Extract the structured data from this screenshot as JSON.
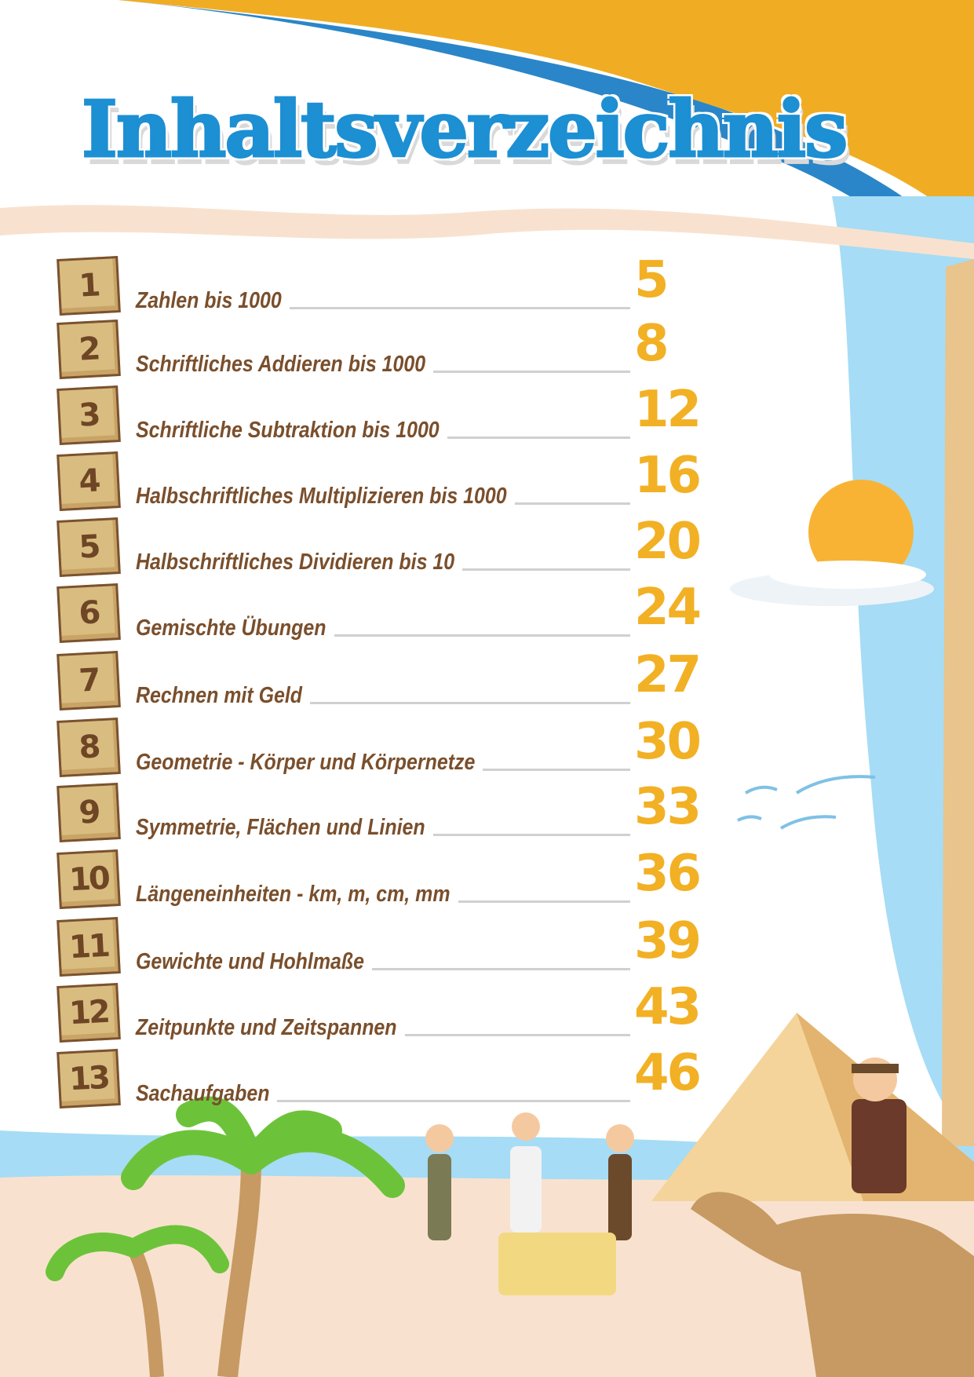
{
  "title": "Inhaltsverzeichnis",
  "colors": {
    "title": "#1d8fd3",
    "label": "#7a4f2c",
    "page_number": "#f2b024",
    "badge": "#d9bd80",
    "sky": "#a6dcf5",
    "sand": "#f8e2cf",
    "orange": "#f0ad24"
  },
  "toc": [
    {
      "number": "1",
      "label": "Zahlen bis 1000",
      "page": "5"
    },
    {
      "number": "2",
      "label": "Schriftliches Addieren bis 1000",
      "page": "8"
    },
    {
      "number": "3",
      "label": "Schriftliche Subtraktion bis 1000",
      "page": "12"
    },
    {
      "number": "4",
      "label": "Halbschriftliches Multiplizieren bis 1000",
      "page": "16"
    },
    {
      "number": "5",
      "label": "Halbschriftliches Dividieren bis 10",
      "page": "20"
    },
    {
      "number": "6",
      "label": "Gemischte Übungen",
      "page": "24"
    },
    {
      "number": "7",
      "label": "Rechnen mit Geld",
      "page": "27"
    },
    {
      "number": "8",
      "label": "Geometrie - Körper und Körpernetze",
      "page": "30"
    },
    {
      "number": "9",
      "label": "Symmetrie, Flächen und Linien",
      "page": "33"
    },
    {
      "number": "10",
      "label": "Längeneinheiten - km, m, cm, mm",
      "page": "36"
    },
    {
      "number": "11",
      "label": "Gewichte und Hohlmaße",
      "page": "39"
    },
    {
      "number": "12",
      "label": "Zeitpunkte und Zeitspannen",
      "page": "43"
    },
    {
      "number": "13",
      "label": "Sachaufgaben",
      "page": "46"
    }
  ]
}
